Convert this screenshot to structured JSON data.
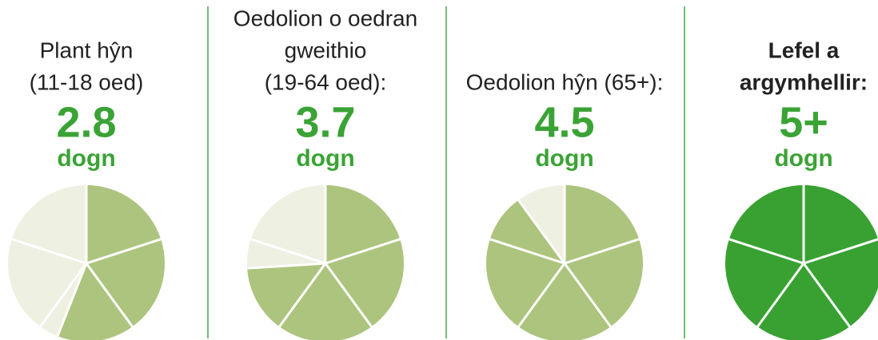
{
  "panels": [
    {
      "label": [
        "Plant hŷn",
        "(11-18 oed)"
      ],
      "value": 2.8,
      "unit": "dogn",
      "bold": false,
      "pie_color": "#adc47e"
    },
    {
      "label": [
        "Oedolion o oedran",
        "gweithio",
        "(19-64 oed):"
      ],
      "value": 3.7,
      "unit": "dogn",
      "bold": false,
      "pie_color": "#adc47e"
    },
    {
      "label": [
        "Oedolion hŷn (65+):"
      ],
      "value": 4.5,
      "unit": "dogn",
      "bold": false,
      "pie_color": "#adc47e"
    },
    {
      "label": [
        "Lefel a",
        "argymhellir:"
      ],
      "value": {
        "value": 5,
        "label": "5+"
      },
      "unit": "dogn",
      "bold": true,
      "pie_color": "#38a132"
    }
  ],
  "empty_color": "#eef0e2",
  "accent_color": "#3aa335",
  "divider_color": "#4aa546"
}
